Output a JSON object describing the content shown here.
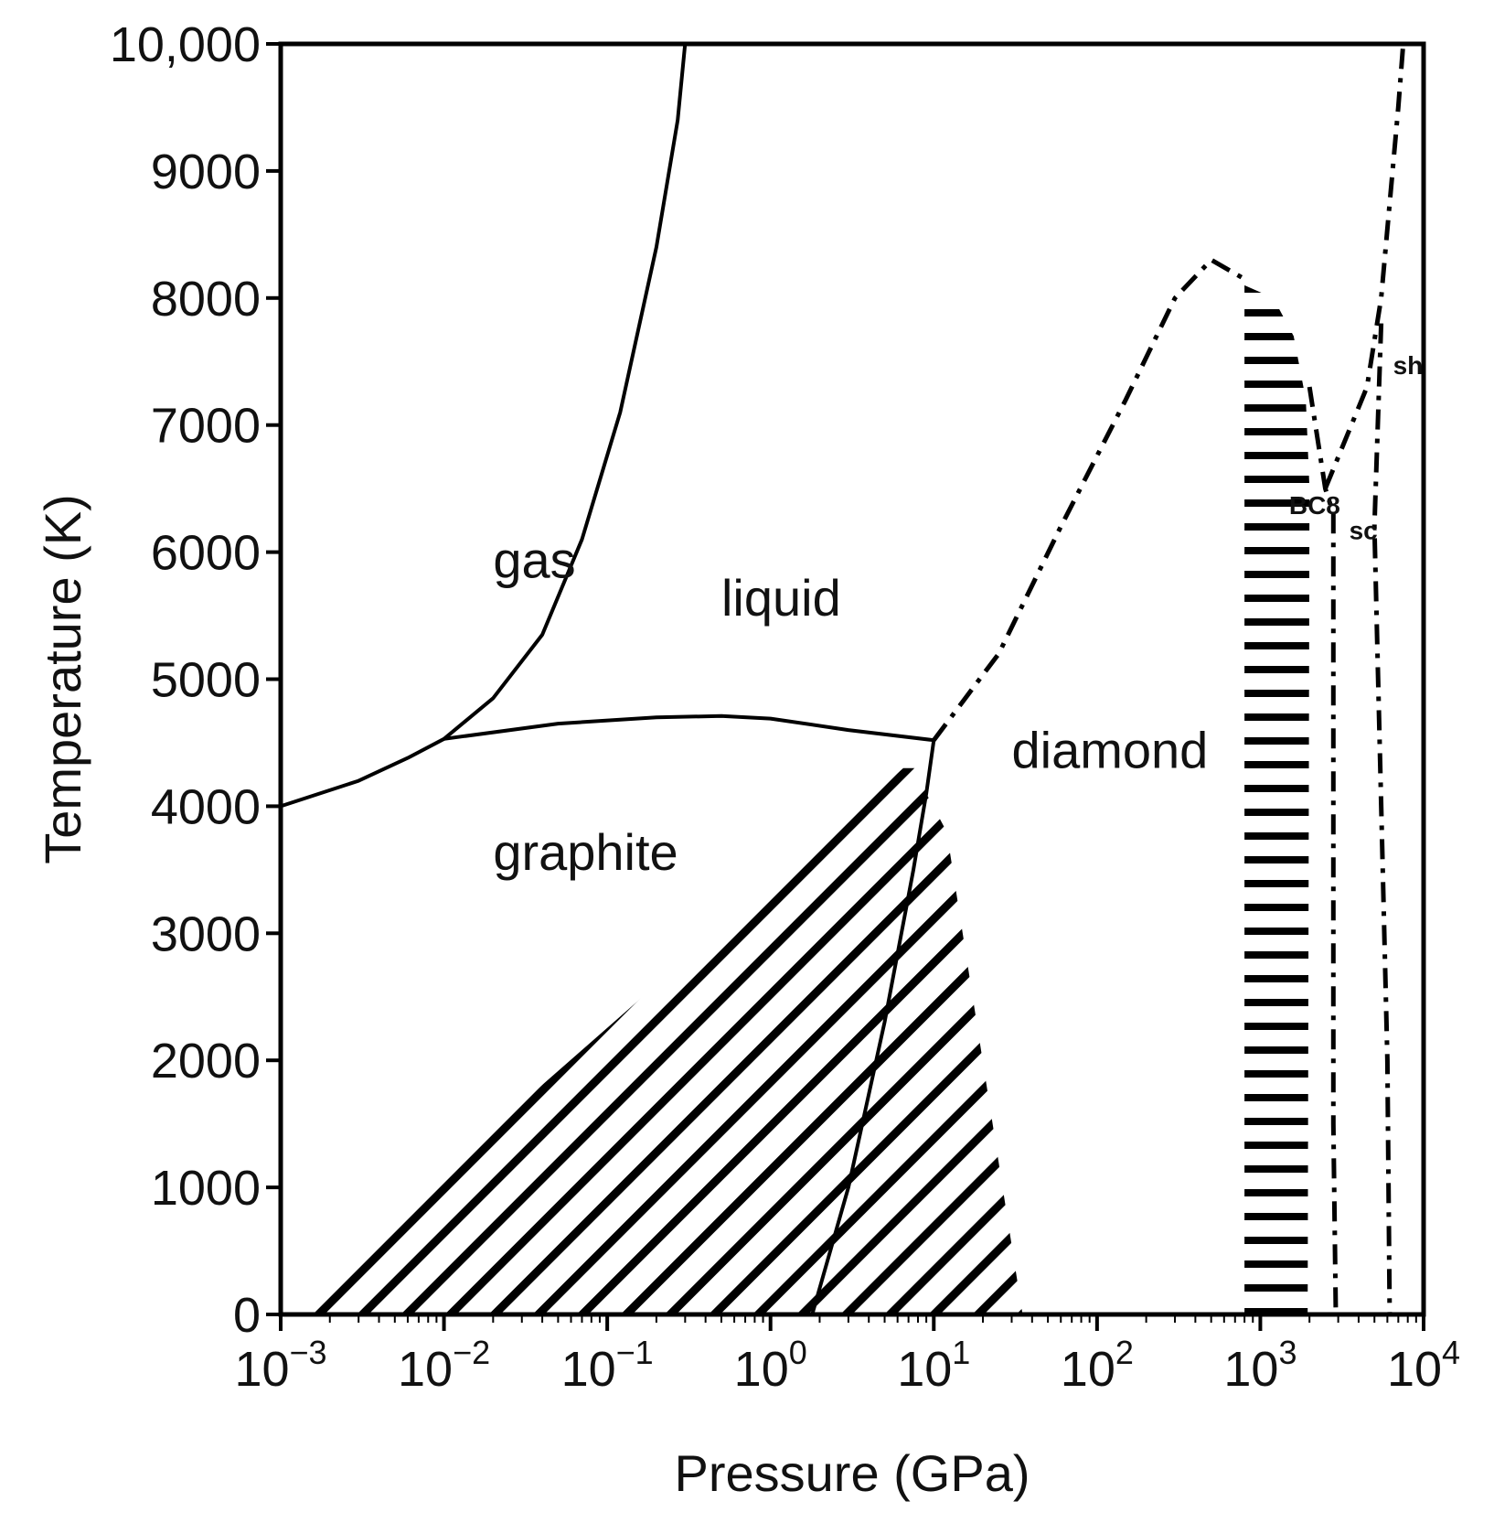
{
  "chart_data": {
    "type": "line",
    "title": "",
    "xlabel": "Pressure (GPa)",
    "ylabel": "Temperature (K)",
    "x_scale": "log",
    "xlim": [
      0.001,
      10000
    ],
    "ylim": [
      0,
      10000
    ],
    "x_ticks": [
      {
        "value": 0.001,
        "base": "10",
        "exp": "−3"
      },
      {
        "value": 0.01,
        "base": "10",
        "exp": "−2"
      },
      {
        "value": 0.1,
        "base": "10",
        "exp": "−1"
      },
      {
        "value": 1,
        "base": "10",
        "exp": "0"
      },
      {
        "value": 10,
        "base": "10",
        "exp": "1"
      },
      {
        "value": 100,
        "base": "10",
        "exp": "2"
      },
      {
        "value": 1000,
        "base": "10",
        "exp": "3"
      },
      {
        "value": 10000,
        "base": "10",
        "exp": "4"
      }
    ],
    "y_ticks": [
      {
        "value": 0,
        "label": "0"
      },
      {
        "value": 1000,
        "label": "1000"
      },
      {
        "value": 2000,
        "label": "2000"
      },
      {
        "value": 3000,
        "label": "3000"
      },
      {
        "value": 4000,
        "label": "4000"
      },
      {
        "value": 5000,
        "label": "5000"
      },
      {
        "value": 6000,
        "label": "6000"
      },
      {
        "value": 7000,
        "label": "7000"
      },
      {
        "value": 8000,
        "label": "8000"
      },
      {
        "value": 9000,
        "label": "9000"
      },
      {
        "value": 10000,
        "label": "10,000"
      }
    ],
    "grid": false,
    "boundaries": [
      {
        "style": "solid",
        "points": [
          [
            0.001,
            4000
          ],
          [
            0.003,
            4200
          ],
          [
            0.006,
            4380
          ],
          [
            0.01,
            4530
          ],
          [
            0.02,
            4850
          ],
          [
            0.04,
            5350
          ],
          [
            0.07,
            6100
          ],
          [
            0.12,
            7100
          ],
          [
            0.2,
            8400
          ],
          [
            0.27,
            9400
          ],
          [
            0.3,
            10000
          ]
        ]
      },
      {
        "style": "solid",
        "points": [
          [
            0.01,
            4530
          ],
          [
            0.05,
            4650
          ],
          [
            0.2,
            4700
          ],
          [
            0.5,
            4710
          ],
          [
            1,
            4690
          ],
          [
            3,
            4600
          ],
          [
            10,
            4520
          ]
        ]
      },
      {
        "style": "solid",
        "points": [
          [
            1.8,
            0
          ],
          [
            3,
            1000
          ],
          [
            5,
            2300
          ],
          [
            7.5,
            3500
          ],
          [
            9,
            4100
          ],
          [
            10,
            4520
          ]
        ]
      },
      {
        "style": "dashdot",
        "points": [
          [
            10,
            4520
          ],
          [
            25,
            5200
          ],
          [
            60,
            6200
          ],
          [
            150,
            7200
          ],
          [
            300,
            8000
          ],
          [
            500,
            8300
          ],
          [
            800,
            8150
          ]
        ]
      },
      {
        "style": "dashdot",
        "points": [
          [
            2000,
            7300
          ],
          [
            2500,
            6500
          ],
          [
            2800,
            6300
          ],
          [
            2800,
            1500
          ],
          [
            2900,
            0
          ]
        ]
      },
      {
        "style": "dashdot",
        "points": [
          [
            2500,
            6500
          ],
          [
            4500,
            7300
          ],
          [
            5500,
            8000
          ],
          [
            7000,
            9500
          ],
          [
            7500,
            10000
          ]
        ]
      },
      {
        "style": "dashdot",
        "points": [
          [
            5500,
            7800
          ],
          [
            5000,
            6200
          ],
          [
            6000,
            2000
          ],
          [
            6200,
            0
          ]
        ]
      }
    ],
    "regions": [
      {
        "name": "graphite-diamond metastable",
        "pattern": "diagonal-hatch",
        "points": [
          [
            0.001,
            0
          ],
          [
            6.5,
            4300
          ],
          [
            8.5,
            4300
          ],
          [
            9,
            4100
          ],
          [
            12,
            3800
          ],
          [
            35,
            0
          ]
        ]
      },
      {
        "name": "BC8 metastable",
        "pattern": "horizontal-hatch",
        "points": [
          [
            800,
            0
          ],
          [
            800,
            8100
          ],
          [
            1200,
            8000
          ],
          [
            1600,
            7700
          ],
          [
            1900,
            7200
          ],
          [
            2000,
            6500
          ],
          [
            1950,
            0
          ]
        ]
      }
    ],
    "annotations": [
      {
        "text": "gas",
        "x": 0.02,
        "y": 5800
      },
      {
        "text": "liquid",
        "x": 0.5,
        "y": 5500
      },
      {
        "text": "graphite",
        "x": 0.02,
        "y": 3500
      },
      {
        "text": "diamond",
        "x": 30,
        "y": 4300
      },
      {
        "text": "BC8",
        "x": 1500,
        "y": 6300
      },
      {
        "text": "sc",
        "x": 3500,
        "y": 6100
      },
      {
        "text": "sh",
        "x": 6500,
        "y": 7400
      }
    ]
  }
}
